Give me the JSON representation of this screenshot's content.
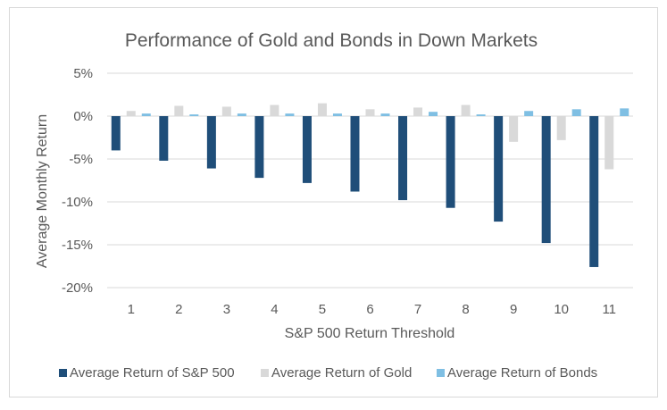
{
  "chart_data": {
    "type": "bar",
    "title": "Performance of Gold and Bonds in Down Markets",
    "xlabel": "S&P 500 Return Threshold",
    "ylabel": "Average Monthly Return",
    "categories": [
      "1",
      "2",
      "3",
      "4",
      "5",
      "6",
      "7",
      "8",
      "9",
      "10",
      "11"
    ],
    "ylim": [
      -20,
      5
    ],
    "yticks": [
      5,
      0,
      -5,
      -10,
      -15,
      -20
    ],
    "ytick_labels": [
      "5%",
      "0%",
      "-5%",
      "-10%",
      "-15%",
      "-20%"
    ],
    "grid": true,
    "legend_position": "bottom",
    "series": [
      {
        "name": "Average Return of S&P 500",
        "color": "#1f4e79",
        "values": [
          -4.0,
          -5.2,
          -6.1,
          -7.2,
          -7.8,
          -8.8,
          -9.8,
          -10.7,
          -12.3,
          -14.8,
          -17.6
        ]
      },
      {
        "name": "Average Return of Gold",
        "color": "#d9d9d9",
        "values": [
          0.6,
          1.2,
          1.1,
          1.3,
          1.5,
          0.8,
          1.0,
          1.3,
          -3.0,
          -2.8,
          -6.2
        ]
      },
      {
        "name": "Average Return of Bonds",
        "color": "#7fbfe3",
        "values": [
          0.3,
          0.2,
          0.3,
          0.3,
          0.3,
          0.3,
          0.5,
          0.2,
          0.6,
          0.8,
          0.9
        ]
      }
    ]
  }
}
